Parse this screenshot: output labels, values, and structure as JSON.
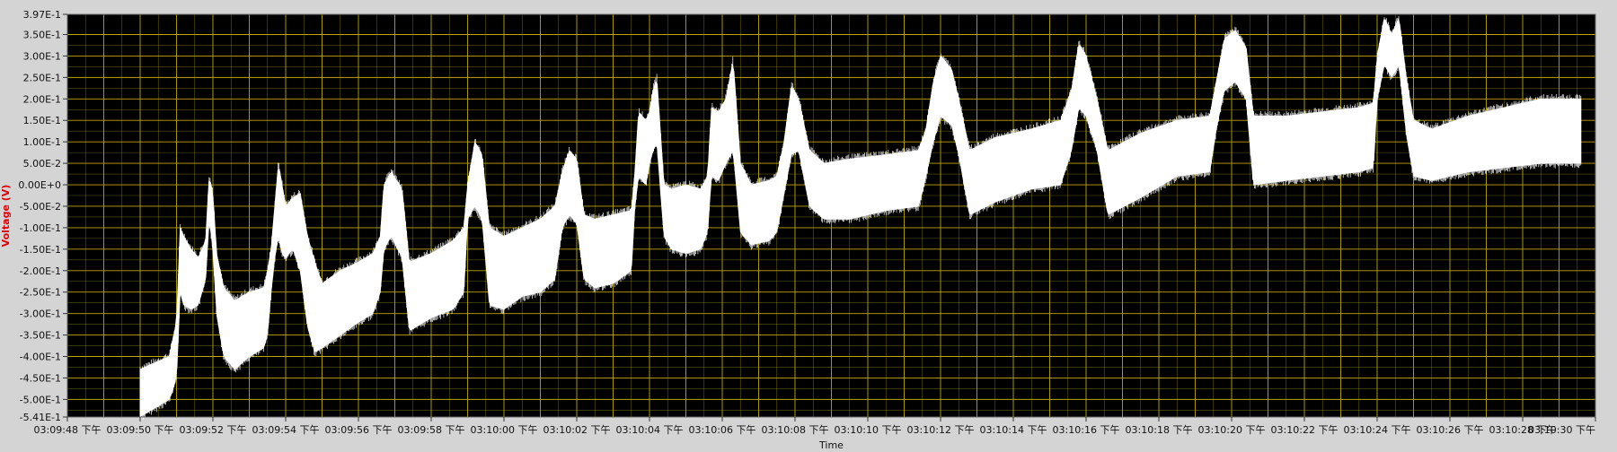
{
  "chart_data": {
    "type": "line",
    "xlabel": "Time",
    "ylabel": "Voltage (V)",
    "ylim": [
      -0.541,
      0.397
    ],
    "y_ticks": [
      "3.97E-1",
      "3.50E-1",
      "3.00E-1",
      "2.50E-1",
      "2.00E-1",
      "1.50E-1",
      "1.00E-1",
      "5.00E-2",
      "0.00E+0",
      "-5.00E-2",
      "-1.00E-1",
      "-1.50E-1",
      "-2.00E-1",
      "-2.50E-1",
      "-3.00E-1",
      "-3.50E-1",
      "-4.00E-1",
      "-4.50E-1",
      "-5.00E-1",
      "-5.41E-1"
    ],
    "x_ticks": [
      "03:09:48 下午",
      "03:09:50 下午",
      "03:09:52 下午",
      "03:09:54 下午",
      "03:09:56 下午",
      "03:09:58 下午",
      "03:10:00 下午",
      "03:10:02 下午",
      "03:10:04 下午",
      "03:10:06 下午",
      "03:10:08 下午",
      "03:10:10 下午",
      "03:10:12 下午",
      "03:10:14 下午",
      "03:10:16 下午",
      "03:10:18 下午",
      "03:10:20 下午",
      "03:10:22 下午",
      "03:10:24 下午",
      "03:10:26 下午",
      "03:10:28 下午",
      "03:10:30 下午"
    ],
    "xlim_seconds": [
      0,
      42
    ],
    "grid": true,
    "colors": {
      "plot_bg": "#000000",
      "grid": "#b8a800",
      "trace": "#ffffff",
      "ylabel": "#e00000"
    },
    "series": [
      {
        "envelope_upper": [
          [
            2.0,
            -0.43
          ],
          [
            2.8,
            -0.4
          ],
          [
            3.0,
            -0.32
          ],
          [
            3.1,
            -0.1
          ],
          [
            3.2,
            -0.12
          ],
          [
            3.4,
            -0.15
          ],
          [
            3.6,
            -0.17
          ],
          [
            3.8,
            -0.13
          ],
          [
            3.9,
            0.02
          ],
          [
            4.0,
            -0.02
          ],
          [
            4.1,
            -0.16
          ],
          [
            4.3,
            -0.24
          ],
          [
            4.6,
            -0.27
          ],
          [
            5.0,
            -0.25
          ],
          [
            5.4,
            -0.24
          ],
          [
            5.5,
            -0.2
          ],
          [
            5.6,
            -0.15
          ],
          [
            5.7,
            -0.05
          ],
          [
            5.8,
            0.05
          ],
          [
            5.9,
            0.0
          ],
          [
            6.0,
            -0.05
          ],
          [
            6.2,
            -0.03
          ],
          [
            6.4,
            -0.02
          ],
          [
            6.6,
            -0.12
          ],
          [
            6.8,
            -0.18
          ],
          [
            7.0,
            -0.23
          ],
          [
            7.5,
            -0.2
          ],
          [
            8.0,
            -0.18
          ],
          [
            8.4,
            -0.16
          ],
          [
            8.6,
            -0.12
          ],
          [
            8.7,
            0.0
          ],
          [
            8.9,
            0.03
          ],
          [
            9.2,
            -0.01
          ],
          [
            9.4,
            -0.18
          ],
          [
            10.0,
            -0.16
          ],
          [
            10.6,
            -0.13
          ],
          [
            10.9,
            -0.1
          ],
          [
            11.0,
            0.0
          ],
          [
            11.2,
            0.1
          ],
          [
            11.4,
            0.07
          ],
          [
            11.6,
            -0.1
          ],
          [
            12.0,
            -0.12
          ],
          [
            12.5,
            -0.1
          ],
          [
            13.0,
            -0.08
          ],
          [
            13.4,
            -0.05
          ],
          [
            13.6,
            0.03
          ],
          [
            13.8,
            0.08
          ],
          [
            14.0,
            0.06
          ],
          [
            14.2,
            -0.07
          ],
          [
            14.5,
            -0.08
          ],
          [
            15.0,
            -0.07
          ],
          [
            15.5,
            -0.06
          ],
          [
            15.6,
            0.03
          ],
          [
            15.7,
            0.17
          ],
          [
            15.9,
            0.15
          ],
          [
            16.0,
            0.17
          ],
          [
            16.1,
            0.22
          ],
          [
            16.2,
            0.25
          ],
          [
            16.4,
            0.0
          ],
          [
            16.6,
            -0.01
          ],
          [
            17.0,
            0.0
          ],
          [
            17.4,
            -0.01
          ],
          [
            17.6,
            0.02
          ],
          [
            17.7,
            0.18
          ],
          [
            17.9,
            0.17
          ],
          [
            18.1,
            0.2
          ],
          [
            18.3,
            0.29
          ],
          [
            18.5,
            0.05
          ],
          [
            18.8,
            0.0
          ],
          [
            19.3,
            0.01
          ],
          [
            19.5,
            0.02
          ],
          [
            19.7,
            0.1
          ],
          [
            19.9,
            0.23
          ],
          [
            20.1,
            0.2
          ],
          [
            20.4,
            0.08
          ],
          [
            20.8,
            0.05
          ],
          [
            21.5,
            0.06
          ],
          [
            22.5,
            0.07
          ],
          [
            23.4,
            0.08
          ],
          [
            23.6,
            0.13
          ],
          [
            23.8,
            0.24
          ],
          [
            24.0,
            0.3
          ],
          [
            24.3,
            0.27
          ],
          [
            24.5,
            0.2
          ],
          [
            24.8,
            0.08
          ],
          [
            25.5,
            0.11
          ],
          [
            26.5,
            0.13
          ],
          [
            27.3,
            0.15
          ],
          [
            27.6,
            0.22
          ],
          [
            27.8,
            0.33
          ],
          [
            28.0,
            0.3
          ],
          [
            28.3,
            0.2
          ],
          [
            28.6,
            0.08
          ],
          [
            29.5,
            0.12
          ],
          [
            30.5,
            0.15
          ],
          [
            31.4,
            0.16
          ],
          [
            31.6,
            0.25
          ],
          [
            31.8,
            0.34
          ],
          [
            32.1,
            0.36
          ],
          [
            32.4,
            0.32
          ],
          [
            32.6,
            0.16
          ],
          [
            33.5,
            0.16
          ],
          [
            34.5,
            0.17
          ],
          [
            35.5,
            0.18
          ],
          [
            35.9,
            0.19
          ],
          [
            36.0,
            0.3
          ],
          [
            36.2,
            0.39
          ],
          [
            36.4,
            0.35
          ],
          [
            36.6,
            0.39
          ],
          [
            36.8,
            0.25
          ],
          [
            37.0,
            0.15
          ],
          [
            37.5,
            0.13
          ],
          [
            38.5,
            0.16
          ],
          [
            39.5,
            0.18
          ],
          [
            40.5,
            0.2
          ],
          [
            41.6,
            0.2
          ]
        ],
        "envelope_lower": [
          [
            2.0,
            -0.54
          ],
          [
            2.8,
            -0.5
          ],
          [
            3.0,
            -0.45
          ],
          [
            3.1,
            -0.25
          ],
          [
            3.2,
            -0.28
          ],
          [
            3.4,
            -0.29
          ],
          [
            3.6,
            -0.28
          ],
          [
            3.8,
            -0.22
          ],
          [
            3.9,
            -0.08
          ],
          [
            4.0,
            -0.15
          ],
          [
            4.1,
            -0.3
          ],
          [
            4.3,
            -0.4
          ],
          [
            4.6,
            -0.43
          ],
          [
            5.0,
            -0.4
          ],
          [
            5.4,
            -0.38
          ],
          [
            5.5,
            -0.35
          ],
          [
            5.6,
            -0.25
          ],
          [
            5.7,
            -0.17
          ],
          [
            5.8,
            -0.12
          ],
          [
            5.9,
            -0.16
          ],
          [
            6.0,
            -0.17
          ],
          [
            6.2,
            -0.15
          ],
          [
            6.4,
            -0.2
          ],
          [
            6.6,
            -0.33
          ],
          [
            6.8,
            -0.39
          ],
          [
            7.0,
            -0.38
          ],
          [
            7.5,
            -0.35
          ],
          [
            8.0,
            -0.32
          ],
          [
            8.4,
            -0.3
          ],
          [
            8.6,
            -0.25
          ],
          [
            8.7,
            -0.15
          ],
          [
            8.9,
            -0.12
          ],
          [
            9.2,
            -0.17
          ],
          [
            9.4,
            -0.34
          ],
          [
            10.0,
            -0.31
          ],
          [
            10.6,
            -0.29
          ],
          [
            10.9,
            -0.25
          ],
          [
            11.0,
            -0.08
          ],
          [
            11.2,
            -0.05
          ],
          [
            11.4,
            -0.08
          ],
          [
            11.6,
            -0.28
          ],
          [
            12.0,
            -0.29
          ],
          [
            12.5,
            -0.26
          ],
          [
            13.0,
            -0.25
          ],
          [
            13.4,
            -0.22
          ],
          [
            13.6,
            -0.1
          ],
          [
            13.8,
            -0.07
          ],
          [
            14.0,
            -0.09
          ],
          [
            14.2,
            -0.22
          ],
          [
            14.5,
            -0.24
          ],
          [
            15.0,
            -0.23
          ],
          [
            15.5,
            -0.2
          ],
          [
            15.6,
            -0.05
          ],
          [
            15.7,
            0.02
          ],
          [
            15.9,
            0.0
          ],
          [
            16.0,
            0.05
          ],
          [
            16.1,
            0.08
          ],
          [
            16.2,
            0.1
          ],
          [
            16.4,
            -0.12
          ],
          [
            16.6,
            -0.15
          ],
          [
            17.0,
            -0.16
          ],
          [
            17.4,
            -0.15
          ],
          [
            17.6,
            -0.11
          ],
          [
            17.7,
            0.02
          ],
          [
            17.9,
            0.01
          ],
          [
            18.1,
            0.05
          ],
          [
            18.3,
            0.08
          ],
          [
            18.5,
            -0.11
          ],
          [
            18.8,
            -0.14
          ],
          [
            19.3,
            -0.13
          ],
          [
            19.5,
            -0.11
          ],
          [
            19.7,
            -0.02
          ],
          [
            19.9,
            0.07
          ],
          [
            20.1,
            0.08
          ],
          [
            20.4,
            -0.05
          ],
          [
            20.8,
            -0.08
          ],
          [
            21.5,
            -0.08
          ],
          [
            22.5,
            -0.06
          ],
          [
            23.4,
            -0.05
          ],
          [
            23.6,
            0.02
          ],
          [
            23.8,
            0.1
          ],
          [
            24.0,
            0.16
          ],
          [
            24.3,
            0.14
          ],
          [
            24.5,
            0.07
          ],
          [
            24.8,
            -0.07
          ],
          [
            25.5,
            -0.04
          ],
          [
            26.5,
            -0.01
          ],
          [
            27.3,
            0.0
          ],
          [
            27.6,
            0.08
          ],
          [
            27.8,
            0.18
          ],
          [
            28.0,
            0.16
          ],
          [
            28.3,
            0.08
          ],
          [
            28.6,
            -0.07
          ],
          [
            29.5,
            -0.03
          ],
          [
            30.5,
            0.02
          ],
          [
            31.4,
            0.03
          ],
          [
            31.6,
            0.14
          ],
          [
            31.8,
            0.22
          ],
          [
            32.1,
            0.24
          ],
          [
            32.4,
            0.2
          ],
          [
            32.6,
            0.0
          ],
          [
            33.5,
            0.01
          ],
          [
            34.5,
            0.02
          ],
          [
            35.5,
            0.03
          ],
          [
            35.9,
            0.04
          ],
          [
            36.0,
            0.2
          ],
          [
            36.2,
            0.28
          ],
          [
            36.4,
            0.25
          ],
          [
            36.6,
            0.28
          ],
          [
            36.8,
            0.12
          ],
          [
            37.0,
            0.02
          ],
          [
            37.5,
            0.01
          ],
          [
            38.5,
            0.03
          ],
          [
            39.5,
            0.04
          ],
          [
            40.5,
            0.05
          ],
          [
            41.6,
            0.05
          ]
        ]
      }
    ]
  }
}
